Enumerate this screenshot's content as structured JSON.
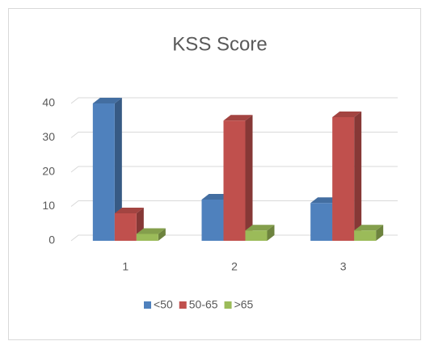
{
  "chart_data": {
    "type": "bar3d",
    "title": "KSS Score",
    "categories": [
      "1",
      "2",
      "3"
    ],
    "series": [
      {
        "name": "<50",
        "color": "#4f81bd",
        "values": [
          40,
          12,
          11
        ]
      },
      {
        "name": "50-65",
        "color": "#c0504d",
        "values": [
          8,
          35,
          36
        ]
      },
      {
        "name": ">65",
        "color": "#9bbb59",
        "values": [
          2,
          3,
          3
        ]
      }
    ],
    "ylim": [
      0,
      40
    ],
    "yticks": [
      0,
      10,
      20,
      30,
      40
    ],
    "grid": true,
    "legend": "bottom"
  }
}
